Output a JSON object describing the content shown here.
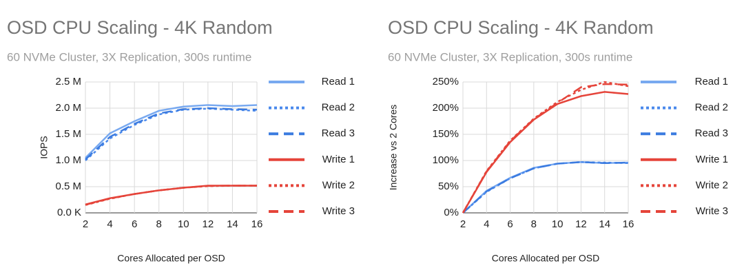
{
  "chart_data": [
    {
      "type": "line",
      "title": "OSD CPU Scaling - 4K Random",
      "subtitle": "60 NVMe Cluster, 3X Replication, 300s runtime",
      "x_label": "Cores Allocated per OSD",
      "y_label": "IOPS",
      "x": [
        2,
        4,
        6,
        8,
        10,
        12,
        14,
        16
      ],
      "xlim": [
        2,
        16
      ],
      "xticks": [
        2,
        4,
        6,
        8,
        10,
        12,
        14,
        16
      ],
      "ylim": [
        0,
        2500000
      ],
      "yticks": [
        {
          "value": 0,
          "label": "0.0 K"
        },
        {
          "value": 500000,
          "label": "0.5 M"
        },
        {
          "value": 1000000,
          "label": "1.0 M"
        },
        {
          "value": 1500000,
          "label": "1.5 M"
        },
        {
          "value": 2000000,
          "label": "2.0 M"
        },
        {
          "value": 2500000,
          "label": "2.5 M"
        }
      ],
      "grid": true,
      "legend": "right",
      "series": [
        {
          "name": "Read 1",
          "color": "#78a9f0",
          "dash": "solid",
          "values": [
            1050000,
            1520000,
            1750000,
            1950000,
            2030000,
            2060000,
            2040000,
            2060000
          ]
        },
        {
          "name": "Read 2",
          "color": "#4a89ec",
          "dash": "dotted",
          "values": [
            1000000,
            1420000,
            1680000,
            1880000,
            1970000,
            1990000,
            1970000,
            1950000
          ]
        },
        {
          "name": "Read 3",
          "color": "#3b7be0",
          "dash": "dashed",
          "values": [
            1020000,
            1450000,
            1700000,
            1900000,
            1980000,
            2000000,
            1980000,
            1970000
          ]
        },
        {
          "name": "Write 1",
          "color": "#e5443a",
          "dash": "solid",
          "values": [
            160000,
            280000,
            360000,
            430000,
            480000,
            520000,
            520000,
            520000
          ]
        },
        {
          "name": "Write 2",
          "color": "#e5443a",
          "dash": "dotted",
          "values": [
            150000,
            270000,
            360000,
            430000,
            480000,
            510000,
            520000,
            520000
          ]
        },
        {
          "name": "Write 3",
          "color": "#e5443a",
          "dash": "dashed",
          "values": [
            155000,
            275000,
            360000,
            430000,
            480000,
            515000,
            520000,
            520000
          ]
        }
      ]
    },
    {
      "type": "line",
      "title": "OSD CPU Scaling - 4K Random",
      "subtitle": "60 NVMe Cluster, 3X Replication, 300s runtime",
      "x_label": "Cores Allocated per OSD",
      "y_label": "Increase vs 2 Cores",
      "x": [
        2,
        4,
        6,
        8,
        10,
        12,
        14,
        16
      ],
      "xlim": [
        2,
        16
      ],
      "xticks": [
        2,
        4,
        6,
        8,
        10,
        12,
        14,
        16
      ],
      "ylim": [
        0,
        250
      ],
      "yticks": [
        {
          "value": 0,
          "label": "0%"
        },
        {
          "value": 50,
          "label": "50%"
        },
        {
          "value": 100,
          "label": "100%"
        },
        {
          "value": 150,
          "label": "150%"
        },
        {
          "value": 200,
          "label": "200%"
        },
        {
          "value": 250,
          "label": "250%"
        }
      ],
      "grid": true,
      "legend": "right",
      "series": [
        {
          "name": "Read 1",
          "color": "#78a9f0",
          "dash": "solid",
          "values": [
            0,
            42,
            67,
            86,
            94,
            97,
            95,
            96
          ]
        },
        {
          "name": "Read 2",
          "color": "#4a89ec",
          "dash": "dotted",
          "values": [
            0,
            40,
            66,
            85,
            94,
            97,
            96,
            95
          ]
        },
        {
          "name": "Read 3",
          "color": "#3b7be0",
          "dash": "dashed",
          "values": [
            0,
            41,
            66,
            85,
            94,
            97,
            95,
            96
          ]
        },
        {
          "name": "Write 1",
          "color": "#e5443a",
          "dash": "solid",
          "values": [
            0,
            78,
            135,
            178,
            208,
            223,
            231,
            227
          ]
        },
        {
          "name": "Write 2",
          "color": "#e5443a",
          "dash": "dotted",
          "values": [
            0,
            80,
            138,
            180,
            212,
            235,
            250,
            242
          ]
        },
        {
          "name": "Write 3",
          "color": "#e5443a",
          "dash": "dashed",
          "values": [
            0,
            79,
            137,
            179,
            210,
            240,
            246,
            245
          ]
        }
      ]
    }
  ]
}
